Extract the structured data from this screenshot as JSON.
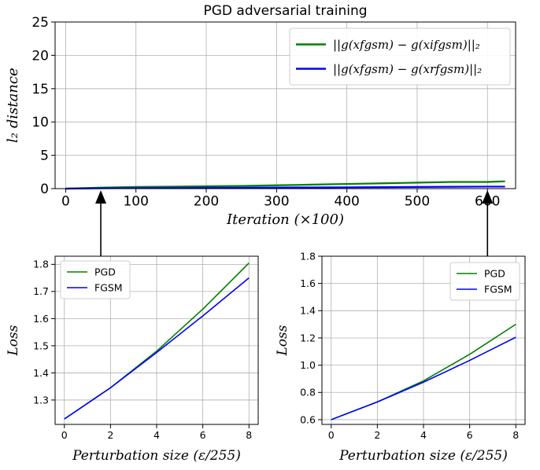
{
  "chart_data": [
    {
      "id": "top",
      "type": "line",
      "title": "PGD adversarial training",
      "xlabel": "Iteration (×100)",
      "ylabel": "l₂ distance",
      "xlim": [
        -15,
        640
      ],
      "ylim": [
        0,
        25
      ],
      "xticks": [
        0,
        100,
        200,
        300,
        400,
        500,
        600
      ],
      "yticks": [
        0,
        5,
        10,
        15,
        20,
        25
      ],
      "grid": true,
      "legend": "top-right",
      "series": [
        {
          "name": "||g(xfgsm) − g(xifgsm)||₂",
          "color": "#008000",
          "x": [
            0,
            50,
            100,
            150,
            200,
            250,
            300,
            350,
            400,
            450,
            500,
            550,
            600,
            625
          ],
          "y": [
            0.0,
            0.15,
            0.25,
            0.3,
            0.35,
            0.4,
            0.5,
            0.6,
            0.7,
            0.8,
            0.9,
            1.0,
            1.0,
            1.1
          ]
        },
        {
          "name": "||g(xfgsm) − g(xrfgsm)||₂",
          "color": "#0000ff",
          "x": [
            0,
            50,
            100,
            150,
            200,
            250,
            300,
            350,
            400,
            450,
            500,
            550,
            600,
            625
          ],
          "y": [
            0.0,
            0.05,
            0.08,
            0.1,
            0.12,
            0.14,
            0.16,
            0.18,
            0.2,
            0.22,
            0.25,
            0.28,
            0.3,
            0.3
          ]
        }
      ]
    },
    {
      "id": "bl",
      "type": "line",
      "xlabel": "Perturbation size (ε/255)",
      "ylabel": "Loss",
      "xlim": [
        -0.4,
        8.4
      ],
      "ylim": [
        1.21,
        1.83
      ],
      "xticks": [
        0,
        2,
        4,
        6,
        8
      ],
      "yticks": [
        1.3,
        1.4,
        1.5,
        1.6,
        1.7,
        1.8
      ],
      "grid": true,
      "legend": "top-left",
      "series": [
        {
          "name": "PGD",
          "color": "#008000",
          "x": [
            0,
            2,
            4,
            6,
            8
          ],
          "y": [
            1.23,
            1.345,
            1.48,
            1.635,
            1.805
          ]
        },
        {
          "name": "FGSM",
          "color": "#0000ff",
          "x": [
            0,
            2,
            4,
            6,
            8
          ],
          "y": [
            1.23,
            1.345,
            1.475,
            1.61,
            1.75
          ]
        }
      ]
    },
    {
      "id": "br",
      "type": "line",
      "xlabel": "Perturbation size (ε/255)",
      "ylabel": "Loss",
      "xlim": [
        -0.4,
        8.4
      ],
      "ylim": [
        0.565,
        1.8
      ],
      "xticks": [
        0,
        2,
        4,
        6,
        8
      ],
      "yticks": [
        0.6,
        0.8,
        1.0,
        1.2,
        1.4,
        1.6,
        1.8
      ],
      "grid": true,
      "legend": "top-right",
      "series": [
        {
          "name": "PGD",
          "color": "#008000",
          "x": [
            0,
            2,
            4,
            6,
            8
          ],
          "y": [
            0.6,
            0.73,
            0.885,
            1.08,
            1.3
          ]
        },
        {
          "name": "FGSM",
          "color": "#0000ff",
          "x": [
            0,
            2,
            4,
            6,
            8
          ],
          "y": [
            0.6,
            0.73,
            0.875,
            1.035,
            1.205
          ]
        }
      ]
    }
  ],
  "annotations": [
    {
      "from_iteration": 50,
      "to_chart": "bl"
    },
    {
      "from_iteration": 600,
      "to_chart": "br"
    }
  ]
}
